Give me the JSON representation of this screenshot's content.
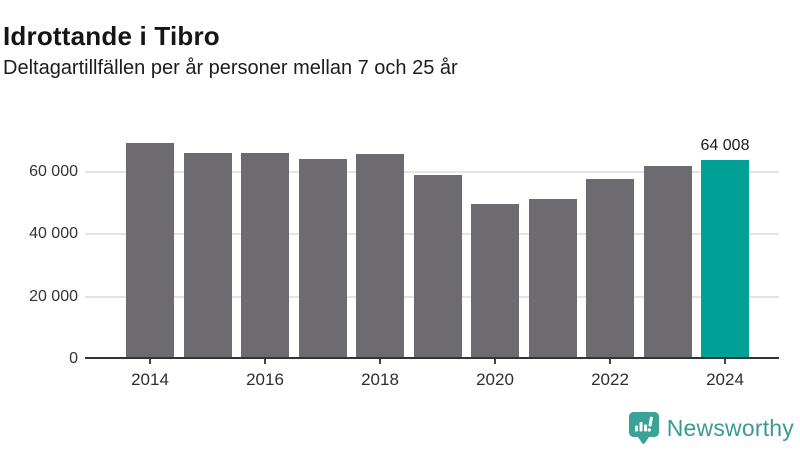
{
  "header": {
    "title": "Idrottande i Tibro",
    "subtitle": "Deltagartillfällen per år personer mellan 7 och 25 år"
  },
  "chart_data": {
    "type": "bar",
    "title": "Idrottande i Tibro",
    "subtitle": "Deltagartillfällen per år personer mellan 7 och 25 år",
    "categories": [
      "2014",
      "2015",
      "2016",
      "2017",
      "2018",
      "2019",
      "2020",
      "2021",
      "2022",
      "2023",
      "2024"
    ],
    "values": [
      69300,
      66100,
      66200,
      64300,
      65900,
      59000,
      49600,
      51200,
      57900,
      61900,
      64008
    ],
    "highlight_index": 10,
    "annotation": {
      "label": "64 008",
      "category": "2024"
    },
    "xlabel": "",
    "ylabel": "",
    "ylim": [
      0,
      75000
    ],
    "yticks": [
      0,
      20000,
      40000,
      60000
    ],
    "ytick_labels": [
      "0",
      "20 000",
      "40 000",
      "60 000"
    ],
    "xtick_labels": [
      "2014",
      "2016",
      "2018",
      "2020",
      "2022",
      "2024"
    ],
    "grid": true,
    "legend": false,
    "bar_color": "#6e6b70",
    "highlight_color": "#00a096",
    "axis_color": "#333333",
    "gridline_color": "#e4e4e4"
  },
  "footer": {
    "brand": "Newsworthy",
    "icon": "bar-chart-speech-bubble-icon",
    "text_color": "#399b91",
    "icon_color": "#3aa296"
  }
}
